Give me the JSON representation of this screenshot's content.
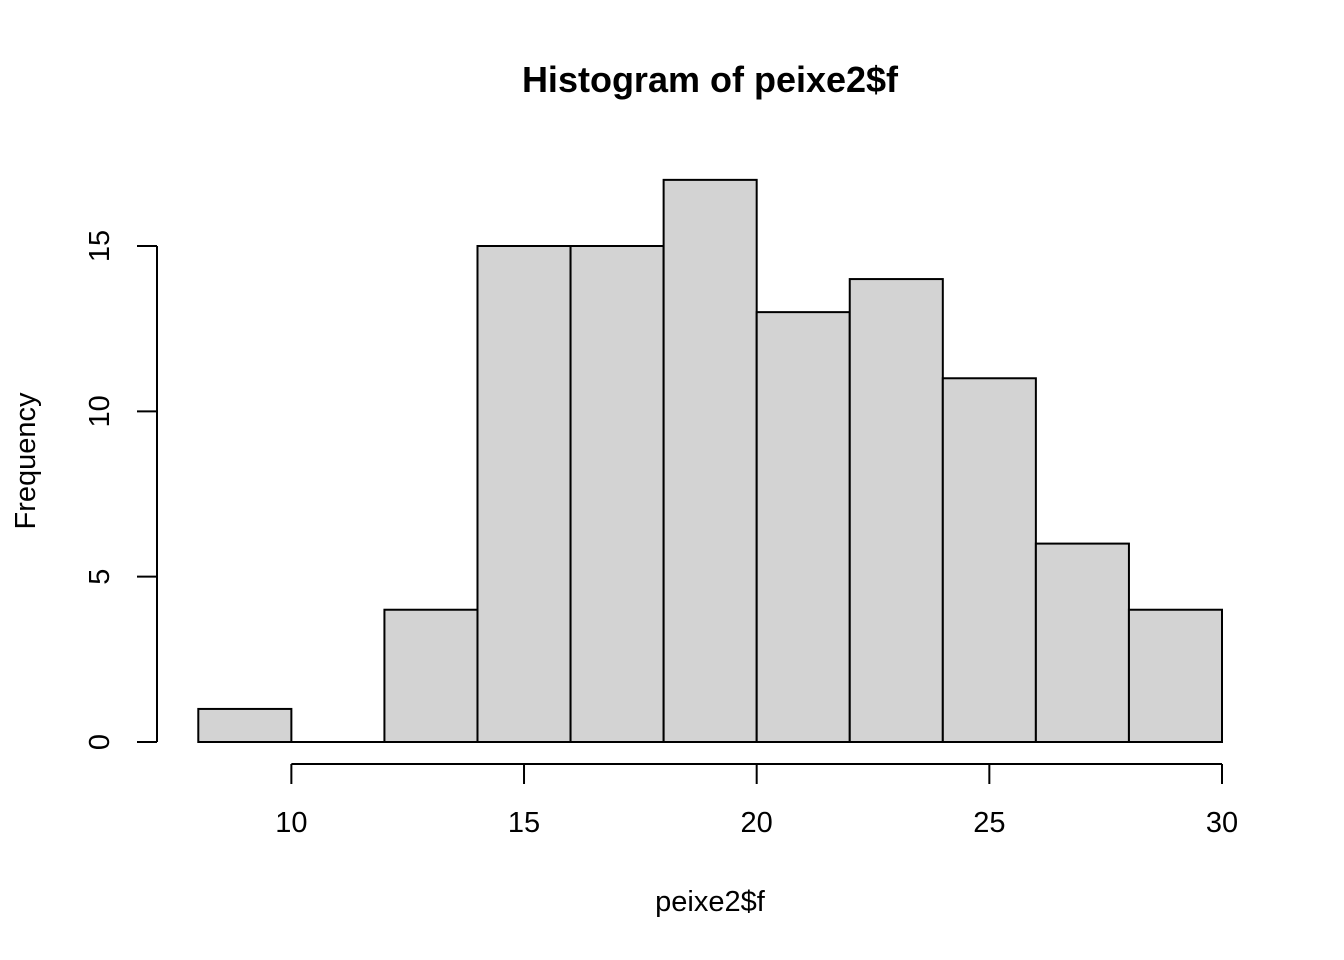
{
  "chart_data": {
    "type": "bar",
    "title": "Histogram of peixe2$f",
    "xlabel": "peixe2$f",
    "ylabel": "Frequency",
    "bins": [
      {
        "from": 8,
        "to": 10,
        "count": 1
      },
      {
        "from": 10,
        "to": 12,
        "count": 0
      },
      {
        "from": 12,
        "to": 14,
        "count": 4
      },
      {
        "from": 14,
        "to": 16,
        "count": 15
      },
      {
        "from": 16,
        "to": 18,
        "count": 15
      },
      {
        "from": 18,
        "to": 20,
        "count": 17
      },
      {
        "from": 20,
        "to": 22,
        "count": 13
      },
      {
        "from": 22,
        "to": 24,
        "count": 14
      },
      {
        "from": 24,
        "to": 26,
        "count": 11
      },
      {
        "from": 26,
        "to": 28,
        "count": 6
      },
      {
        "from": 28,
        "to": 30,
        "count": 4
      }
    ],
    "xlim": [
      8,
      30
    ],
    "ylim": [
      0,
      17
    ],
    "xticks": [
      "10",
      "15",
      "20",
      "25",
      "30"
    ],
    "yticks": [
      "0",
      "5",
      "10",
      "15"
    ],
    "bar_fill": "#d3d3d3",
    "bar_stroke": "#000000",
    "grid": false,
    "legend": "none"
  }
}
